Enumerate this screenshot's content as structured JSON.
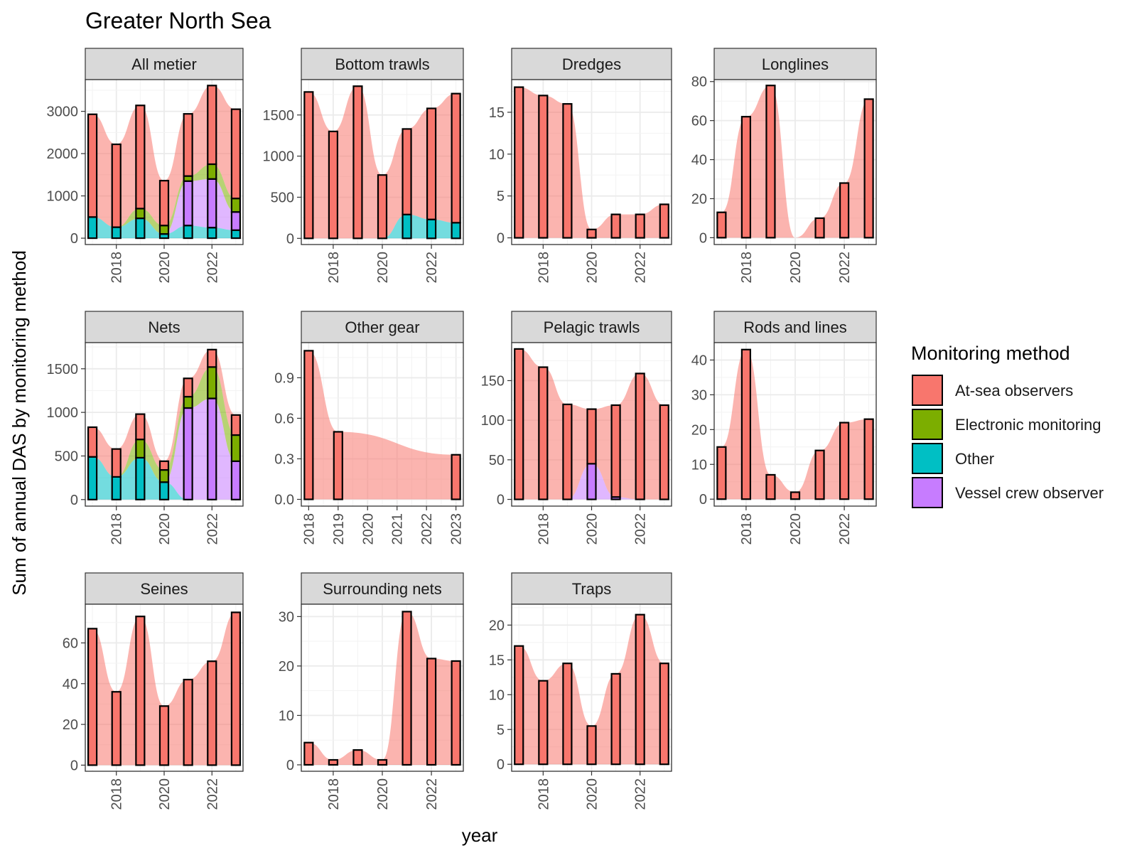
{
  "figure": {
    "title": "Greater North Sea",
    "xlabel": "year",
    "ylabel": "Sum of annual DAS by monitoring method"
  },
  "legend": {
    "title": "Monitoring method",
    "position": "right",
    "items": [
      {
        "name": "At-sea observers",
        "color": "#F8766D"
      },
      {
        "name": "Electronic monitoring",
        "color": "#7CAE00"
      },
      {
        "name": "Other",
        "color": "#00BFC4"
      },
      {
        "name": "Vessel crew observer",
        "color": "#C77CFF"
      }
    ]
  },
  "chart_data": [
    {
      "type": "bar",
      "title": "All metier",
      "x": [
        2017,
        2018,
        2019,
        2020,
        2021,
        2022,
        2023
      ],
      "xlim": [
        2016.7,
        2023.3
      ],
      "xticks": [
        2018,
        2020,
        2022
      ],
      "ylim": [
        -150,
        3750
      ],
      "yticks": [
        0,
        1000,
        2000,
        3000
      ],
      "series": [
        {
          "name": "Other",
          "values": [
            500,
            260,
            470,
            100,
            300,
            250,
            190
          ]
        },
        {
          "name": "Vessel crew observer",
          "values": [
            0,
            0,
            0,
            0,
            1050,
            1150,
            430
          ]
        },
        {
          "name": "Electronic monitoring",
          "values": [
            0,
            0,
            230,
            200,
            120,
            350,
            320
          ]
        },
        {
          "name": "At-sea observers",
          "values": [
            2430,
            1960,
            2440,
            1060,
            1470,
            1860,
            2110
          ]
        }
      ]
    },
    {
      "type": "bar",
      "title": "Bottom trawls",
      "x": [
        2017,
        2018,
        2019,
        2020,
        2021,
        2022,
        2023
      ],
      "xlim": [
        2016.7,
        2023.3
      ],
      "xticks": [
        2018,
        2020,
        2022
      ],
      "ylim": [
        -75,
        1930
      ],
      "yticks": [
        0,
        500,
        1000,
        1500
      ],
      "series": [
        {
          "name": "Other",
          "values": [
            0,
            0,
            0,
            0,
            290,
            230,
            190
          ]
        },
        {
          "name": "At-sea observers",
          "values": [
            1780,
            1300,
            1850,
            770,
            1040,
            1350,
            1570
          ]
        }
      ]
    },
    {
      "type": "bar",
      "title": "Dredges",
      "x": [
        2017,
        2018,
        2019,
        2020,
        2021,
        2022,
        2023
      ],
      "xlim": [
        2016.7,
        2023.3
      ],
      "xticks": [
        2018,
        2020,
        2022
      ],
      "ylim": [
        -0.8,
        18.9
      ],
      "yticks": [
        0,
        5,
        10,
        15
      ],
      "series": [
        {
          "name": "At-sea observers",
          "values": [
            18,
            17,
            16,
            1,
            2.8,
            2.8,
            4
          ]
        }
      ]
    },
    {
      "type": "bar",
      "title": "Longlines",
      "x": [
        2017,
        2018,
        2019,
        2020,
        2021,
        2022,
        2023
      ],
      "xlim": [
        2016.7,
        2023.3
      ],
      "xticks": [
        2018,
        2020,
        2022
      ],
      "ylim": [
        -3.5,
        81
      ],
      "yticks": [
        0,
        20,
        40,
        60,
        80
      ],
      "series": [
        {
          "name": "At-sea observers",
          "values": [
            13,
            62,
            78,
            0,
            10,
            28,
            71
          ]
        }
      ]
    },
    {
      "type": "bar",
      "title": "Nets",
      "x": [
        2017,
        2018,
        2019,
        2020,
        2021,
        2022,
        2023
      ],
      "xlim": [
        2016.7,
        2023.3
      ],
      "xticks": [
        2018,
        2020,
        2022
      ],
      "ylim": [
        -75,
        1800
      ],
      "yticks": [
        0,
        500,
        1000,
        1500
      ],
      "series": [
        {
          "name": "Other",
          "values": [
            490,
            260,
            480,
            200,
            0,
            0,
            0
          ]
        },
        {
          "name": "Vessel crew observer",
          "values": [
            0,
            0,
            0,
            0,
            1050,
            1160,
            440
          ]
        },
        {
          "name": "Electronic monitoring",
          "values": [
            0,
            0,
            210,
            140,
            130,
            360,
            300
          ]
        },
        {
          "name": "At-sea observers",
          "values": [
            340,
            320,
            290,
            100,
            210,
            200,
            230
          ]
        }
      ]
    },
    {
      "type": "bar",
      "title": "Other gear",
      "x": [
        2018,
        2019,
        2023
      ],
      "xlim": [
        2017.75,
        2023.25
      ],
      "xticks": [
        2018,
        2019,
        2020,
        2021,
        2022,
        2023
      ],
      "ylim": [
        -0.05,
        1.16
      ],
      "yticks": [
        0.0,
        0.3,
        0.6,
        0.9
      ],
      "ytick_format": "1dp",
      "series": [
        {
          "name": "At-sea observers",
          "values": [
            1.1,
            0.5,
            0.33
          ]
        }
      ]
    },
    {
      "type": "bar",
      "title": "Pelagic trawls",
      "x": [
        2017,
        2018,
        2019,
        2020,
        2021,
        2022,
        2023
      ],
      "xlim": [
        2016.7,
        2023.3
      ],
      "xticks": [
        2018,
        2020,
        2022
      ],
      "ylim": [
        -8.5,
        198
      ],
      "yticks": [
        0,
        50,
        100,
        150
      ],
      "series": [
        {
          "name": "Vessel crew observer",
          "values": [
            0,
            0,
            0,
            45,
            3,
            0,
            0
          ]
        },
        {
          "name": "At-sea observers",
          "values": [
            190,
            167,
            120,
            69,
            116,
            159,
            119
          ]
        }
      ]
    },
    {
      "type": "bar",
      "title": "Rods and lines",
      "x": [
        2017,
        2018,
        2019,
        2020,
        2021,
        2022,
        2023
      ],
      "xlim": [
        2016.7,
        2023.3
      ],
      "xticks": [
        2018,
        2020,
        2022
      ],
      "ylim": [
        -2,
        45
      ],
      "yticks": [
        0,
        10,
        20,
        30,
        40
      ],
      "series": [
        {
          "name": "At-sea observers",
          "values": [
            15,
            43,
            7,
            2,
            14,
            22,
            23
          ]
        }
      ]
    },
    {
      "type": "bar",
      "title": "Seines",
      "x": [
        2017,
        2018,
        2019,
        2020,
        2021,
        2022,
        2023
      ],
      "xlim": [
        2016.7,
        2023.3
      ],
      "xticks": [
        2018,
        2020,
        2022
      ],
      "ylim": [
        -3,
        79
      ],
      "yticks": [
        0,
        20,
        40,
        60
      ],
      "series": [
        {
          "name": "At-sea observers",
          "values": [
            67,
            36,
            73,
            29,
            42,
            51,
            75
          ]
        }
      ]
    },
    {
      "type": "bar",
      "title": "Surrounding nets",
      "x": [
        2017,
        2018,
        2019,
        2020,
        2021,
        2022,
        2023
      ],
      "xlim": [
        2016.7,
        2023.3
      ],
      "xticks": [
        2018,
        2020,
        2022
      ],
      "ylim": [
        -1.3,
        32.5
      ],
      "yticks": [
        0,
        10,
        20,
        30
      ],
      "series": [
        {
          "name": "At-sea observers",
          "values": [
            4.5,
            1,
            3,
            1,
            31,
            21.5,
            21
          ]
        }
      ]
    },
    {
      "type": "bar",
      "title": "Traps",
      "x": [
        2017,
        2018,
        2019,
        2020,
        2021,
        2022,
        2023
      ],
      "xlim": [
        2016.7,
        2023.3
      ],
      "xticks": [
        2018,
        2020,
        2022
      ],
      "ylim": [
        -1,
        23
      ],
      "yticks": [
        0,
        5,
        10,
        15,
        20
      ],
      "series": [
        {
          "name": "At-sea observers",
          "values": [
            17,
            12,
            14.5,
            5.5,
            13,
            21.5,
            14.5
          ]
        }
      ]
    }
  ]
}
